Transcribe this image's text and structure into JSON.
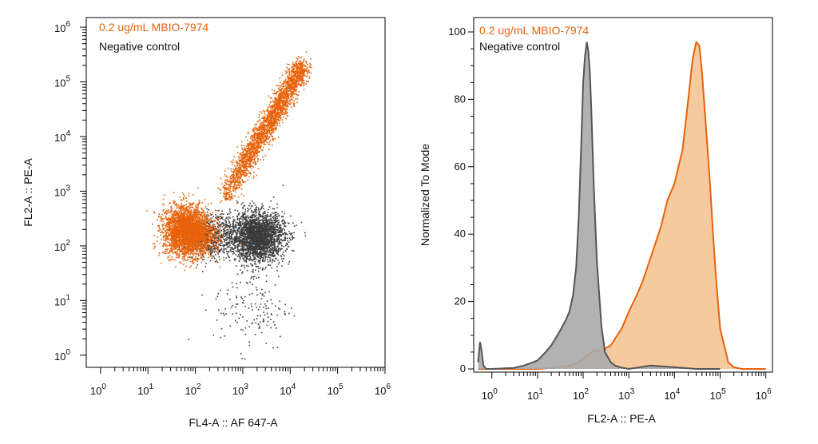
{
  "chart_data": [
    {
      "type": "scatter",
      "log_x": true,
      "log_y": true,
      "xlim": [
        0.5,
        1000000
      ],
      "ylim": [
        0.6,
        1500000
      ],
      "xlabel": "FL4-A :: AF 647-A",
      "ylabel": "FL2-A :: PE-A",
      "x_ticks": [
        1,
        10,
        100,
        1000,
        10000,
        100000,
        1000000
      ],
      "y_ticks": [
        1,
        10,
        100,
        1000,
        10000,
        100000,
        1000000
      ],
      "tick_base": "10",
      "tick_exponents": [
        "0",
        "1",
        "2",
        "3",
        "4",
        "5",
        "6"
      ],
      "legend_position": "top-left",
      "series": [
        {
          "name": "Negative control",
          "color": "#3c3c3c",
          "clusters": [
            {
              "x_center": 2000,
              "y_center": 150,
              "x_spread": 0.28,
              "y_spread": 0.22,
              "n": 2600
            },
            {
              "x_center": 200,
              "y_center": 150,
              "x_spread": 0.3,
              "y_spread": 0.2,
              "n": 700
            },
            {
              "x_center": 1500,
              "y_center": 8,
              "x_spread": 0.4,
              "y_spread": 0.4,
              "n": 160
            }
          ]
        },
        {
          "name": "0.2 ug/mL MBIO-7974",
          "color": "#e8620a",
          "clusters": [
            {
              "x_center": 70,
              "y_center": 170,
              "x_spread": 0.26,
              "y_spread": 0.2,
              "n": 2600
            },
            {
              "x_center": 60,
              "y_center": 300,
              "x_spread": 0.22,
              "y_spread": 0.18,
              "n": 600
            }
          ],
          "diagonal": {
            "x_start": 400,
            "y_start": 800,
            "x_end": 18000,
            "y_end": 200000,
            "n": 2400
          }
        }
      ]
    },
    {
      "type": "area",
      "log_x": true,
      "xlim": [
        0.4,
        1400000
      ],
      "ylim": [
        0,
        100
      ],
      "xlabel": "FL2-A :: PE-A",
      "ylabel": "Normalized To Mode",
      "x_ticks": [
        1,
        10,
        100,
        1000,
        10000,
        100000,
        1000000
      ],
      "y_ticks": [
        0,
        20,
        40,
        60,
        80,
        100
      ],
      "tick_base": "10",
      "tick_exponents": [
        "0",
        "1",
        "2",
        "3",
        "4",
        "5",
        "6"
      ],
      "legend_position": "top-left",
      "series": [
        {
          "name": "Negative control",
          "color": "#555555",
          "fill": "#aaaaaa",
          "x": [
            0.5,
            0.55,
            0.6,
            0.65,
            0.75,
            1,
            3,
            5,
            8,
            10,
            15,
            20,
            30,
            40,
            50,
            60,
            70,
            80,
            90,
            100,
            110,
            120,
            130,
            140,
            150,
            170,
            200,
            250,
            300,
            400,
            500,
            700,
            1000,
            3000,
            10000,
            30000,
            100000
          ],
          "y": [
            2,
            8,
            5,
            1,
            0,
            0,
            0.3,
            1,
            2,
            2.5,
            5,
            7,
            11,
            14,
            17,
            22,
            30,
            45,
            65,
            85,
            93,
            97,
            94,
            88,
            78,
            55,
            32,
            13,
            5,
            2,
            1,
            0.4,
            0,
            1,
            0.5,
            0,
            0
          ]
        },
        {
          "name": "0.2 ug/mL MBIO-7974",
          "color": "#e8620a",
          "fill": "#f5c18e",
          "x": [
            0.5,
            10,
            20,
            30,
            50,
            80,
            100,
            150,
            200,
            250,
            300,
            400,
            500,
            700,
            1000,
            1500,
            2000,
            3000,
            5000,
            7000,
            10000,
            15000,
            20000,
            25000,
            30000,
            35000,
            40000,
            50000,
            60000,
            70000,
            80000,
            100000,
            150000,
            200000,
            300000,
            1000000
          ],
          "y": [
            0,
            0,
            0.3,
            0.6,
            1,
            2,
            3,
            5,
            5.5,
            5.5,
            6,
            7,
            9,
            12,
            17,
            22,
            26,
            33,
            42,
            50,
            55,
            65,
            80,
            92,
            97,
            96,
            88,
            70,
            55,
            40,
            28,
            12,
            2,
            0.5,
            0,
            0
          ]
        }
      ]
    }
  ]
}
